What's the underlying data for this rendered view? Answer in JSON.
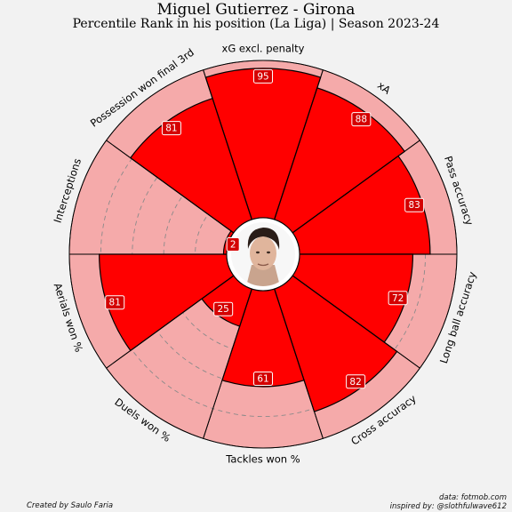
{
  "title": "Miguel Gutierrez - Girona",
  "subtitle": "Percentile Rank in his position (La Liga) | Season 2023-24",
  "credits": {
    "left": "Created by Saulo Faria",
    "source": "data: fotmob.com",
    "inspired": "inspired by: @slothfulwave612"
  },
  "colors": {
    "background": "#f2f2f2",
    "slice_fill": "#ff0000",
    "slice_background": "#f5aaaa",
    "label_box": "#d40000",
    "outline": "#000000"
  },
  "player_photo": "player-headshot",
  "chart_data": {
    "type": "radial-bar",
    "scale": [
      0,
      100
    ],
    "grid": true,
    "categories": [
      "xG excl. penalty",
      "xA",
      "Pass accuracy",
      "Long ball accuracy",
      "Cross accuracy",
      "Tackles won %",
      "Duels won %",
      "Aerials won %",
      "Interceptions",
      "Possession won final 3rd"
    ],
    "values": [
      95,
      88,
      83,
      72,
      82,
      61,
      25,
      81,
      2,
      81
    ]
  }
}
